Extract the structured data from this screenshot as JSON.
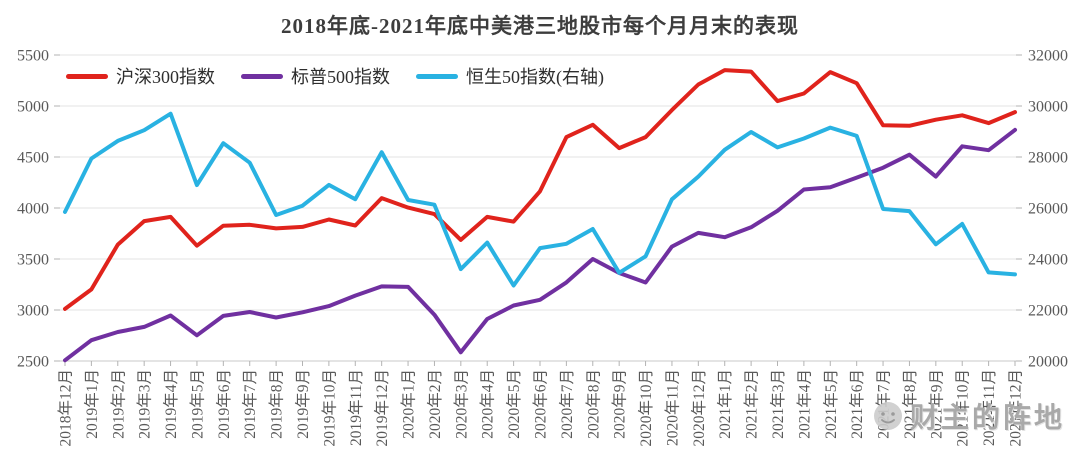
{
  "chart": {
    "title": "2018年底-2021年底中美港三地股市每个月月末的表现",
    "legend": [
      "沪深300指数",
      "标普500指数",
      "恒生50指数(右轴)"
    ]
  },
  "watermark": {
    "text": "财主的阵地"
  },
  "colors": {
    "csi300": "#e0231c",
    "sp500": "#7030a0",
    "hs50": "#29b2e2",
    "gridline": "#e3e3e3",
    "axis_line": "#c8c8c8",
    "tick": "#b3b3b3",
    "axis_text": "#595959"
  },
  "chart_data": {
    "type": "line",
    "title": "2018年底-2021年底中美港三地股市每个月月末的表现",
    "grid": "horizontal",
    "legend_position": "top-left",
    "x": [
      "2018年12月",
      "2019年1月",
      "2019年2月",
      "2019年3月",
      "2019年4月",
      "2019年5月",
      "2019年6月",
      "2019年7月",
      "2019年8月",
      "2019年9月",
      "2019年10月",
      "2019年11月",
      "2019年12月",
      "2020年1月",
      "2020年2月",
      "2020年3月",
      "2020年4月",
      "2020年5月",
      "2020年6月",
      "2020年7月",
      "2020年8月",
      "2020年9月",
      "2020年10月",
      "2020年11月",
      "2020年12月",
      "2021年1月",
      "2021年2月",
      "2021年3月",
      "2021年4月",
      "2021年5月",
      "2021年6月",
      "2021年7月",
      "2021年8月",
      "2021年9月",
      "2021年10月",
      "2021年11月",
      "2021年12月"
    ],
    "series": [
      {
        "name": "沪深300指数",
        "axis": "left",
        "color": "#e0231c",
        "values": [
          3011,
          3202,
          3641,
          3872,
          3913,
          3630,
          3826,
          3835,
          3800,
          3815,
          3887,
          3828,
          4097,
          4004,
          3940,
          3687,
          3913,
          3867,
          4164,
          4695,
          4816,
          4587,
          4695,
          4960,
          5211,
          5352,
          5337,
          5048,
          5123,
          5332,
          5224,
          4811,
          4806,
          4866,
          4909,
          4832,
          4940
        ]
      },
      {
        "name": "标普500指数",
        "axis": "left",
        "color": "#7030a0",
        "values": [
          2507,
          2704,
          2784,
          2834,
          2946,
          2752,
          2942,
          2980,
          2926,
          2977,
          3038,
          3141,
          3231,
          3226,
          2954,
          2585,
          2912,
          3044,
          3100,
          3271,
          3500,
          3363,
          3270,
          3622,
          3756,
          3714,
          3811,
          3973,
          4181,
          4204,
          4298,
          4395,
          4523,
          4308,
          4605,
          4567,
          4766
        ]
      },
      {
        "name": "恒生50指数(右轴)",
        "axis": "right",
        "color": "#29b2e2",
        "values": [
          25846,
          27942,
          28633,
          29051,
          29699,
          26901,
          28543,
          27778,
          25725,
          26092,
          26907,
          26346,
          28190,
          26313,
          26130,
          23603,
          24644,
          22961,
          24427,
          24595,
          25177,
          23459,
          24107,
          26341,
          27231,
          28284,
          28980,
          28378,
          28725,
          29152,
          28828,
          25961,
          25879,
          24576,
          25377,
          23475,
          23398
        ]
      }
    ],
    "y_axis_left": {
      "min": 2500,
      "max": 5500,
      "ticks": [
        5500,
        5000,
        4500,
        4000,
        3500,
        3000,
        2500
      ]
    },
    "y_axis_right": {
      "min": 20000,
      "max": 32000,
      "ticks": [
        32000,
        30000,
        28000,
        26000,
        24000,
        22000,
        20000
      ]
    }
  }
}
